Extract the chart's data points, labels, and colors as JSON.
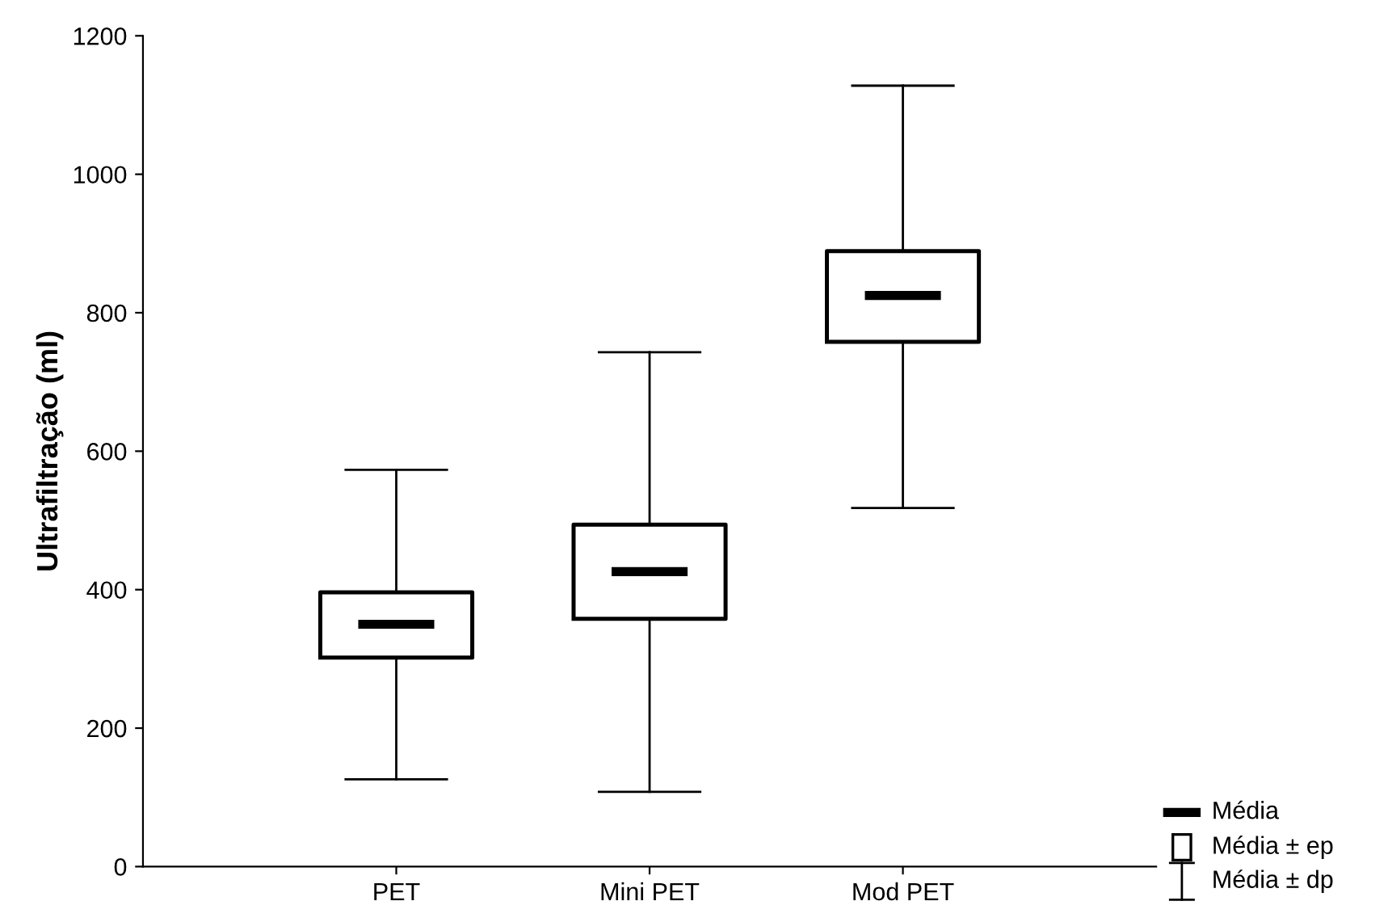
{
  "chart_data": {
    "type": "box",
    "ylabel": "Ultrafiltração (ml)",
    "categories": [
      "PET",
      "Mini PET",
      "Mod PET"
    ],
    "boxes": [
      {
        "low": 126,
        "q1": 302,
        "median": 350,
        "q3": 396,
        "high": 573
      },
      {
        "low": 108,
        "q1": 358,
        "median": 426,
        "q3": 494,
        "high": 743
      },
      {
        "low": 518,
        "q1": 758,
        "median": 825,
        "q3": 889,
        "high": 1128
      }
    ],
    "color": "#000000",
    "ylim": [
      0,
      1200
    ],
    "yticks": [
      0,
      200,
      400,
      600,
      800,
      1000,
      1200
    ],
    "grid": false,
    "annotations": [
      "Média",
      "Média ± ep",
      "Média ± dp"
    ]
  }
}
